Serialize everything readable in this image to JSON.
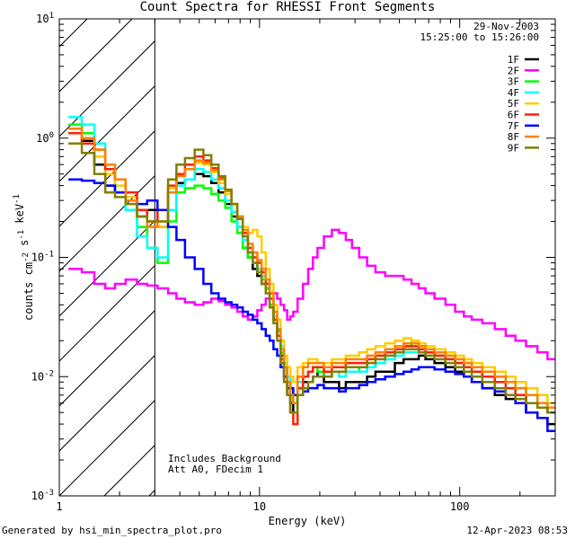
{
  "title": "Count Spectra for RHESSI Front Segments",
  "date": "29-Nov-2003",
  "time_range": "15:25:00 to 15:26:00",
  "notes": [
    "Includes Background",
    "Att A0, FDecim 1"
  ],
  "footer_left": "Generated by hsi_min_spectra_plot.pro",
  "footer_right": "12-Apr-2023 08:53",
  "chart_data": {
    "type": "line",
    "step": true,
    "xscale": "log",
    "yscale": "log",
    "xlabel": "Energy (keV)",
    "ylabel": "counts cm^-2 s^-1 keV^-1",
    "xlim": [
      1,
      300
    ],
    "ylim": [
      0.001,
      10
    ],
    "x_ticks": [
      1,
      10,
      100
    ],
    "x_tick_labels": [
      "1",
      "10",
      "100"
    ],
    "y_ticks": [
      0.001,
      0.01,
      0.1,
      1,
      10
    ],
    "y_tick_labels": [
      "10^-3",
      "10^-2",
      "10^-1",
      "10^0",
      "10^1"
    ],
    "hatched_region_kev": [
      1,
      3
    ],
    "energy_kev": [
      1.2,
      1.4,
      1.6,
      1.8,
      2.0,
      2.3,
      2.6,
      2.9,
      3.3,
      3.7,
      4.0,
      4.5,
      5.0,
      5.5,
      6.0,
      6.5,
      7.0,
      7.5,
      8.0,
      8.5,
      9.0,
      9.5,
      10,
      10.5,
      11,
      11.5,
      12,
      12.5,
      13,
      13.5,
      14,
      14.5,
      15,
      16,
      17,
      18,
      19,
      20,
      22,
      24,
      26,
      28,
      30,
      33,
      36,
      40,
      45,
      50,
      55,
      60,
      65,
      70,
      80,
      90,
      100,
      110,
      120,
      140,
      160,
      180,
      200,
      230,
      260,
      290
    ],
    "series": [
      {
        "name": "1F",
        "color": "#000000",
        "values": [
          1.1,
          0.95,
          0.6,
          0.4,
          0.35,
          0.3,
          0.22,
          0.25,
          0.18,
          0.35,
          0.42,
          0.45,
          0.5,
          0.48,
          0.42,
          0.35,
          0.28,
          0.22,
          0.18,
          0.12,
          0.1,
          0.08,
          0.07,
          0.06,
          0.055,
          0.04,
          0.03,
          0.022,
          0.015,
          0.012,
          0.008,
          0.006,
          0.005,
          0.008,
          0.009,
          0.009,
          0.01,
          0.011,
          0.009,
          0.009,
          0.008,
          0.009,
          0.009,
          0.009,
          0.01,
          0.011,
          0.011,
          0.013,
          0.014,
          0.014,
          0.015,
          0.014,
          0.013,
          0.012,
          0.011,
          0.01,
          0.009,
          0.008,
          0.007,
          0.0065,
          0.006,
          0.005,
          0.0045,
          0.004
        ]
      },
      {
        "name": "2F",
        "color": "#ff00ff",
        "values": [
          0.08,
          0.075,
          0.06,
          0.055,
          0.06,
          0.065,
          0.06,
          0.058,
          0.055,
          0.05,
          0.045,
          0.042,
          0.04,
          0.042,
          0.045,
          0.043,
          0.04,
          0.038,
          0.035,
          0.032,
          0.03,
          0.032,
          0.036,
          0.04,
          0.045,
          0.05,
          0.05,
          0.045,
          0.04,
          0.036,
          0.03,
          0.032,
          0.035,
          0.045,
          0.06,
          0.08,
          0.1,
          0.12,
          0.15,
          0.17,
          0.16,
          0.14,
          0.12,
          0.1,
          0.085,
          0.075,
          0.07,
          0.07,
          0.065,
          0.06,
          0.055,
          0.05,
          0.045,
          0.04,
          0.035,
          0.032,
          0.03,
          0.028,
          0.025,
          0.022,
          0.02,
          0.018,
          0.016,
          0.014
        ]
      },
      {
        "name": "3F",
        "color": "#00ff00",
        "values": [
          1.3,
          1.1,
          0.8,
          0.5,
          0.35,
          0.25,
          0.18,
          0.12,
          0.09,
          0.2,
          0.35,
          0.38,
          0.4,
          0.38,
          0.34,
          0.3,
          0.26,
          0.2,
          0.16,
          0.12,
          0.1,
          0.09,
          0.08,
          0.065,
          0.055,
          0.04,
          0.03,
          0.024,
          0.016,
          0.013,
          0.009,
          0.007,
          0.006,
          0.009,
          0.01,
          0.011,
          0.012,
          0.011,
          0.01,
          0.011,
          0.011,
          0.012,
          0.012,
          0.011,
          0.012,
          0.013,
          0.014,
          0.016,
          0.018,
          0.02,
          0.018,
          0.017,
          0.016,
          0.015,
          0.014,
          0.013,
          0.012,
          0.011,
          0.01,
          0.009,
          0.008,
          0.007,
          0.006,
          0.005
        ]
      },
      {
        "name": "4F",
        "color": "#00ffff",
        "values": [
          1.5,
          1.3,
          0.9,
          0.6,
          0.4,
          0.25,
          0.15,
          0.12,
          0.1,
          0.25,
          0.4,
          0.45,
          0.55,
          0.52,
          0.45,
          0.38,
          0.3,
          0.24,
          0.18,
          0.14,
          0.11,
          0.09,
          0.08,
          0.07,
          0.06,
          0.045,
          0.032,
          0.025,
          0.018,
          0.013,
          0.01,
          0.008,
          0.006,
          0.009,
          0.01,
          0.011,
          0.012,
          0.012,
          0.011,
          0.011,
          0.01,
          0.011,
          0.011,
          0.011,
          0.012,
          0.013,
          0.014,
          0.015,
          0.016,
          0.016,
          0.017,
          0.016,
          0.015,
          0.014,
          0.013,
          0.012,
          0.011,
          0.01,
          0.009,
          0.008,
          0.007,
          0.006,
          0.0055,
          0.005
        ]
      },
      {
        "name": "5F",
        "color": "#ffcc00",
        "values": [
          1.2,
          1.0,
          0.7,
          0.5,
          0.4,
          0.32,
          0.22,
          0.2,
          0.18,
          0.38,
          0.5,
          0.55,
          0.62,
          0.6,
          0.52,
          0.42,
          0.34,
          0.28,
          0.22,
          0.18,
          0.16,
          0.17,
          0.15,
          0.11,
          0.08,
          0.06,
          0.04,
          0.03,
          0.02,
          0.015,
          0.012,
          0.01,
          0.009,
          0.012,
          0.013,
          0.014,
          0.014,
          0.013,
          0.013,
          0.014,
          0.014,
          0.015,
          0.015,
          0.016,
          0.017,
          0.018,
          0.019,
          0.02,
          0.021,
          0.02,
          0.019,
          0.018,
          0.017,
          0.016,
          0.015,
          0.014,
          0.013,
          0.012,
          0.011,
          0.01,
          0.009,
          0.008,
          0.007,
          0.006
        ]
      },
      {
        "name": "6F",
        "color": "#ff2000",
        "values": [
          1.1,
          0.9,
          0.8,
          0.55,
          0.45,
          0.35,
          0.25,
          0.2,
          0.25,
          0.4,
          0.5,
          0.6,
          0.7,
          0.65,
          0.56,
          0.46,
          0.36,
          0.28,
          0.22,
          0.16,
          0.12,
          0.1,
          0.09,
          0.075,
          0.06,
          0.045,
          0.03,
          0.022,
          0.014,
          0.01,
          0.007,
          0.005,
          0.004,
          0.008,
          0.01,
          0.011,
          0.012,
          0.012,
          0.011,
          0.012,
          0.012,
          0.013,
          0.013,
          0.013,
          0.014,
          0.015,
          0.016,
          0.017,
          0.018,
          0.018,
          0.017,
          0.016,
          0.015,
          0.014,
          0.013,
          0.012,
          0.011,
          0.01,
          0.009,
          0.008,
          0.007,
          0.006,
          0.0055,
          0.005
        ]
      },
      {
        "name": "7F",
        "color": "#0000ff",
        "values": [
          0.45,
          0.44,
          0.42,
          0.4,
          0.35,
          0.3,
          0.28,
          0.3,
          0.25,
          0.18,
          0.14,
          0.1,
          0.08,
          0.06,
          0.05,
          0.045,
          0.042,
          0.04,
          0.038,
          0.035,
          0.033,
          0.03,
          0.028,
          0.025,
          0.022,
          0.02,
          0.017,
          0.015,
          0.012,
          0.01,
          0.009,
          0.008,
          0.007,
          0.007,
          0.0075,
          0.008,
          0.008,
          0.0085,
          0.008,
          0.008,
          0.0075,
          0.008,
          0.008,
          0.0085,
          0.009,
          0.0095,
          0.01,
          0.0105,
          0.011,
          0.0115,
          0.012,
          0.012,
          0.0115,
          0.011,
          0.0105,
          0.01,
          0.009,
          0.008,
          0.0075,
          0.007,
          0.006,
          0.005,
          0.0045,
          0.0035
        ]
      },
      {
        "name": "8F",
        "color": "#ff8000",
        "values": [
          1.2,
          1.0,
          0.8,
          0.6,
          0.45,
          0.3,
          0.22,
          0.18,
          0.2,
          0.35,
          0.48,
          0.55,
          0.65,
          0.62,
          0.54,
          0.45,
          0.36,
          0.28,
          0.22,
          0.17,
          0.13,
          0.11,
          0.095,
          0.08,
          0.065,
          0.05,
          0.035,
          0.025,
          0.017,
          0.012,
          0.009,
          0.007,
          0.006,
          0.01,
          0.012,
          0.013,
          0.013,
          0.013,
          0.012,
          0.013,
          0.013,
          0.014,
          0.014,
          0.014,
          0.015,
          0.016,
          0.017,
          0.018,
          0.019,
          0.019,
          0.018,
          0.017,
          0.016,
          0.015,
          0.014,
          0.013,
          0.012,
          0.011,
          0.01,
          0.009,
          0.008,
          0.007,
          0.006,
          0.0055
        ]
      },
      {
        "name": "9F",
        "color": "#808000",
        "values": [
          0.9,
          0.75,
          0.5,
          0.35,
          0.32,
          0.28,
          0.22,
          0.2,
          0.2,
          0.45,
          0.6,
          0.68,
          0.8,
          0.72,
          0.6,
          0.48,
          0.37,
          0.28,
          0.21,
          0.15,
          0.11,
          0.09,
          0.075,
          0.06,
          0.05,
          0.038,
          0.028,
          0.02,
          0.013,
          0.009,
          0.007,
          0.005,
          0.005,
          0.007,
          0.008,
          0.009,
          0.01,
          0.01,
          0.01,
          0.011,
          0.011,
          0.012,
          0.012,
          0.012,
          0.013,
          0.014,
          0.015,
          0.016,
          0.017,
          0.017,
          0.016,
          0.015,
          0.014,
          0.013,
          0.012,
          0.011,
          0.01,
          0.009,
          0.008,
          0.007,
          0.0065,
          0.006,
          0.0055,
          0.005
        ]
      }
    ]
  }
}
